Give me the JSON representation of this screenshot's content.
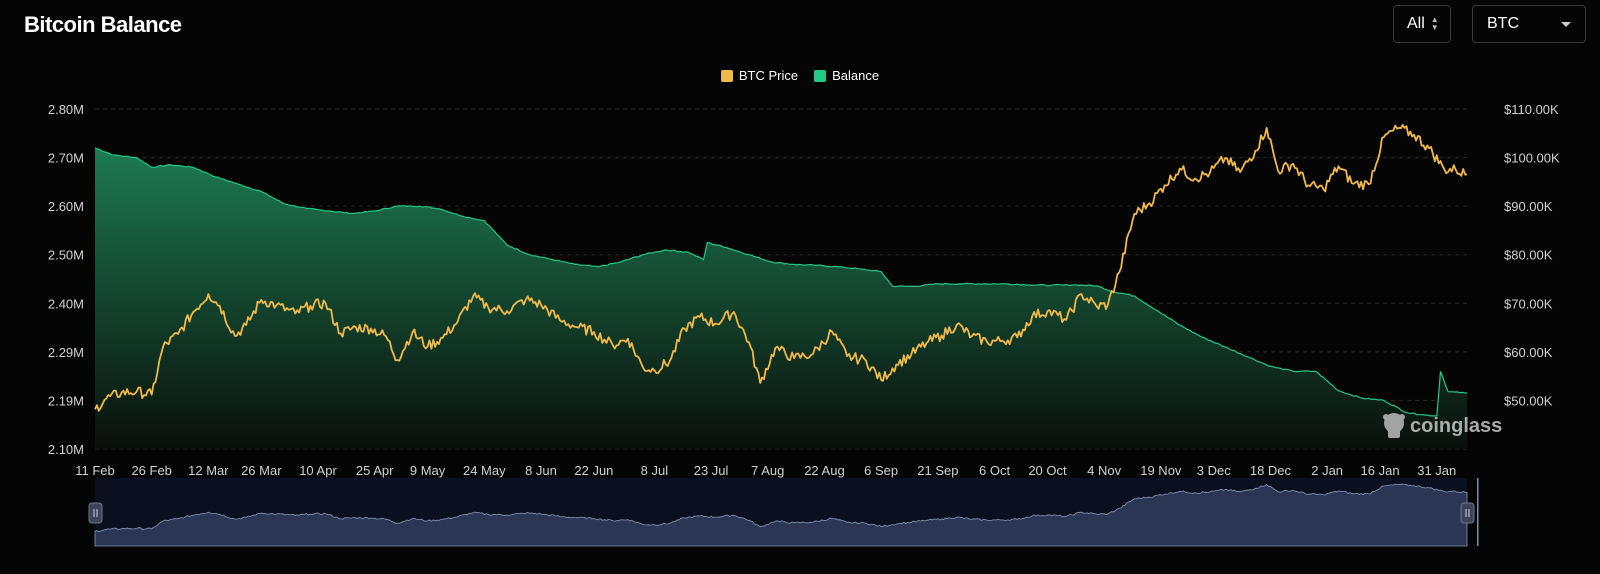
{
  "header": {
    "title": "Bitcoin Balance",
    "range_value": "All",
    "asset_value": "BTC"
  },
  "watermark": "coinglass",
  "colors": {
    "price": "#f0b94a",
    "balance_line": "#23c987",
    "balance_fill_top": "#1d7a50",
    "navigator_fill": "#2b3654",
    "background": "#050505",
    "grid": "#2a2a2a"
  },
  "icons": {
    "range_arrows": "up-down-chevron-icon",
    "asset_caret": "chevron-down-icon",
    "watermark_logo": "coinglass-logo-icon",
    "navigator_handles": "drag-handle-icon"
  },
  "chart_data": {
    "type": "line",
    "title": "",
    "legend": {
      "position": "top-center",
      "entries": [
        "BTC Price",
        "Balance"
      ]
    },
    "grid": true,
    "x_axis": {
      "type": "date",
      "start": "2024-02-11",
      "end": "2025-02-08",
      "tick_labels": [
        "11 Feb",
        "26 Feb",
        "12 Mar",
        "26 Mar",
        "10 Apr",
        "25 Apr",
        "9 May",
        "24 May",
        "8 Jun",
        "22 Jun",
        "8 Jul",
        "23 Jul",
        "7 Aug",
        "22 Aug",
        "6 Sep",
        "21 Sep",
        "6 Oct",
        "20 Oct",
        "4 Nov",
        "19 Nov",
        "3 Dec",
        "18 Dec",
        "2 Jan",
        "16 Jan",
        "31 Jan"
      ]
    },
    "y_left": {
      "label": "",
      "ylim": [
        2100000,
        2800000
      ],
      "tick_labels": [
        "2.10M",
        "2.19M",
        "2.29M",
        "2.40M",
        "2.50M",
        "2.60M",
        "2.70M",
        "2.80M"
      ]
    },
    "y_right": {
      "label": "",
      "ylim": [
        40000,
        110000
      ],
      "tick_labels": [
        "$50.00K",
        "$60.00K",
        "$70.00K",
        "$80.00K",
        "$90.00K",
        "$100.00K",
        "$110.00K"
      ]
    },
    "series": [
      {
        "name": "BTC Price",
        "axis": "right",
        "type": "line",
        "x": [
          "2024-02-11",
          "2024-02-14",
          "2024-02-18",
          "2024-02-22",
          "2024-02-26",
          "2024-02-29",
          "2024-03-04",
          "2024-03-08",
          "2024-03-12",
          "2024-03-15",
          "2024-03-19",
          "2024-03-22",
          "2024-03-26",
          "2024-03-30",
          "2024-04-04",
          "2024-04-08",
          "2024-04-12",
          "2024-04-16",
          "2024-04-20",
          "2024-04-24",
          "2024-04-28",
          "2024-05-01",
          "2024-05-05",
          "2024-05-09",
          "2024-05-13",
          "2024-05-17",
          "2024-05-21",
          "2024-05-25",
          "2024-05-30",
          "2024-06-04",
          "2024-06-08",
          "2024-06-13",
          "2024-06-18",
          "2024-06-22",
          "2024-06-27",
          "2024-07-01",
          "2024-07-05",
          "2024-07-08",
          "2024-07-12",
          "2024-07-16",
          "2024-07-20",
          "2024-07-24",
          "2024-07-29",
          "2024-08-02",
          "2024-08-05",
          "2024-08-09",
          "2024-08-14",
          "2024-08-19",
          "2024-08-24",
          "2024-08-28",
          "2024-09-02",
          "2024-09-06",
          "2024-09-10",
          "2024-09-14",
          "2024-09-18",
          "2024-09-22",
          "2024-09-26",
          "2024-09-30",
          "2024-10-04",
          "2024-10-08",
          "2024-10-12",
          "2024-10-16",
          "2024-10-20",
          "2024-10-25",
          "2024-10-29",
          "2024-11-02",
          "2024-11-05",
          "2024-11-08",
          "2024-11-12",
          "2024-11-16",
          "2024-11-20",
          "2024-11-24",
          "2024-11-28",
          "2024-12-02",
          "2024-12-06",
          "2024-12-10",
          "2024-12-14",
          "2024-12-17",
          "2024-12-20",
          "2024-12-24",
          "2024-12-28",
          "2025-01-01",
          "2025-01-05",
          "2025-01-09",
          "2025-01-13",
          "2025-01-17",
          "2025-01-21",
          "2025-01-25",
          "2025-01-29",
          "2025-02-02",
          "2025-02-05",
          "2025-02-08"
        ],
        "values": [
          48200,
          50400,
          51600,
          51800,
          51200,
          61000,
          63700,
          68200,
          71900,
          69500,
          63300,
          65500,
          70700,
          69600,
          67900,
          69500,
          70000,
          63800,
          65100,
          64800,
          63200,
          58300,
          64000,
          61100,
          62900,
          66300,
          71400,
          69200,
          68400,
          70800,
          69700,
          66500,
          65000,
          64100,
          61400,
          62700,
          56800,
          56200,
          58000,
          64800,
          67200,
          65800,
          68200,
          62000,
          53600,
          60800,
          58700,
          59600,
          64200,
          59100,
          58200,
          54200,
          57400,
          59500,
          61800,
          63400,
          65600,
          63200,
          62100,
          62300,
          63000,
          67400,
          68400,
          66600,
          71900,
          69400,
          69700,
          76400,
          88400,
          90600,
          94300,
          97700,
          95700,
          96900,
          99900,
          97000,
          101400,
          106100,
          97300,
          98700,
          94300,
          93500,
          98200,
          94600,
          94500,
          104200,
          106100,
          104700,
          101900,
          97600,
          97500,
          96500
        ]
      },
      {
        "name": "Balance",
        "axis": "left",
        "type": "area",
        "x": [
          "2024-02-11",
          "2024-02-16",
          "2024-02-22",
          "2024-02-26",
          "2024-03-02",
          "2024-03-08",
          "2024-03-14",
          "2024-03-20",
          "2024-03-26",
          "2024-04-01",
          "2024-04-07",
          "2024-04-13",
          "2024-04-19",
          "2024-04-25",
          "2024-05-01",
          "2024-05-07",
          "2024-05-12",
          "2024-05-18",
          "2024-05-24",
          "2024-05-30",
          "2024-06-05",
          "2024-06-11",
          "2024-06-17",
          "2024-06-23",
          "2024-06-29",
          "2024-07-05",
          "2024-07-11",
          "2024-07-17",
          "2024-07-21",
          "2024-07-22",
          "2024-07-27",
          "2024-08-02",
          "2024-08-08",
          "2024-08-14",
          "2024-08-20",
          "2024-08-26",
          "2024-09-01",
          "2024-09-06",
          "2024-09-09",
          "2024-09-15",
          "2024-09-21",
          "2024-09-27",
          "2024-10-03",
          "2024-10-09",
          "2024-10-15",
          "2024-10-21",
          "2024-10-27",
          "2024-11-02",
          "2024-11-06",
          "2024-11-12",
          "2024-11-18",
          "2024-11-24",
          "2024-11-30",
          "2024-12-06",
          "2024-12-12",
          "2024-12-18",
          "2024-12-24",
          "2024-12-30",
          "2025-01-05",
          "2025-01-11",
          "2025-01-17",
          "2025-01-23",
          "2025-01-28",
          "2025-01-31",
          "2025-02-01",
          "2025-02-03",
          "2025-02-08"
        ],
        "values": [
          2720000,
          2705000,
          2700000,
          2680000,
          2685000,
          2680000,
          2660000,
          2645000,
          2630000,
          2605000,
          2595000,
          2590000,
          2585000,
          2590000,
          2600000,
          2600000,
          2595000,
          2580000,
          2570000,
          2520000,
          2500000,
          2490000,
          2480000,
          2475000,
          2485000,
          2500000,
          2510000,
          2505000,
          2490000,
          2525000,
          2515000,
          2500000,
          2485000,
          2480000,
          2478000,
          2475000,
          2470000,
          2465000,
          2435000,
          2435000,
          2440000,
          2440000,
          2440000,
          2440000,
          2438000,
          2437000,
          2438000,
          2436000,
          2425000,
          2415000,
          2385000,
          2355000,
          2330000,
          2310000,
          2290000,
          2270000,
          2260000,
          2260000,
          2220000,
          2205000,
          2200000,
          2175000,
          2170000,
          2168000,
          2260000,
          2218000,
          2215000
        ]
      }
    ]
  }
}
